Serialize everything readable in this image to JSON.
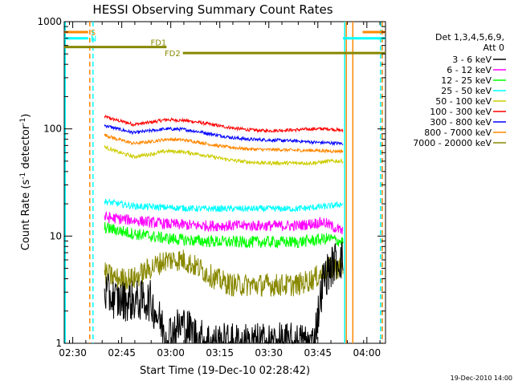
{
  "chart_data": {
    "type": "line",
    "title": "HESSI Observing Summary Count Rates",
    "xlabel": "Start Time (19-Dec-10 02:28:42)",
    "ylabel_main": "Count Rate (s",
    "ylabel_sup1": "-1",
    "ylabel_mid": " detector",
    "ylabel_sup2": "-1",
    "ylabel_end": ")",
    "y_scale": "log",
    "ylim": [
      1,
      1000
    ],
    "y_ticks": [
      {
        "value": 1,
        "label": "1"
      },
      {
        "value": 10,
        "label": "10"
      },
      {
        "value": 100,
        "label": "100"
      },
      {
        "value": 1000,
        "label": "1000"
      }
    ],
    "xlim_min": [
      -1.3,
      97
    ],
    "x_ticks": [
      {
        "value": 1.3,
        "label": "02:30"
      },
      {
        "value": 16.3,
        "label": "02:45"
      },
      {
        "value": 31.3,
        "label": "03:00"
      },
      {
        "value": 46.3,
        "label": "03:15"
      },
      {
        "value": 61.3,
        "label": "03:30"
      },
      {
        "value": 76.3,
        "label": "03:45"
      },
      {
        "value": 91.3,
        "label": "04:00"
      }
    ],
    "data_window_min": [
      11,
      84
    ],
    "legend": {
      "header": [
        "Det 1,3,4,5,6,9,",
        "Att 0"
      ],
      "placement": "right",
      "entries": [
        {
          "label": "3 - 6 keV",
          "color": "#000000"
        },
        {
          "label": "6 - 12 keV",
          "color": "#ff00ff"
        },
        {
          "label": "12 - 25 keV",
          "color": "#00ff00"
        },
        {
          "label": "25 - 50 keV",
          "color": "#00ffff"
        },
        {
          "label": "50 - 100 keV",
          "color": "#cccc00"
        },
        {
          "label": "100 - 300 keV",
          "color": "#ff0000"
        },
        {
          "label": "300 - 800 keV",
          "color": "#0000ff"
        },
        {
          "label": "800 - 7000 keV",
          "color": "#ff8800"
        },
        {
          "label": "7000 - 20000 keV",
          "color": "#888800"
        }
      ]
    },
    "series": [
      {
        "name": "100 - 300 keV",
        "color": "#ff0000",
        "points": [
          [
            11,
            130
          ],
          [
            15,
            120
          ],
          [
            20,
            110
          ],
          [
            25,
            115
          ],
          [
            30,
            122
          ],
          [
            35,
            120
          ],
          [
            40,
            115
          ],
          [
            45,
            108
          ],
          [
            50,
            102
          ],
          [
            55,
            98
          ],
          [
            60,
            96
          ],
          [
            65,
            97
          ],
          [
            70,
            98
          ],
          [
            75,
            100
          ],
          [
            80,
            100
          ],
          [
            84,
            96
          ]
        ]
      },
      {
        "name": "300 - 800 keV",
        "color": "#0000ff",
        "points": [
          [
            11,
            108
          ],
          [
            15,
            100
          ],
          [
            20,
            92
          ],
          [
            25,
            96
          ],
          [
            30,
            100
          ],
          [
            35,
            99
          ],
          [
            40,
            94
          ],
          [
            45,
            88
          ],
          [
            50,
            83
          ],
          [
            55,
            80
          ],
          [
            60,
            79
          ],
          [
            65,
            78
          ],
          [
            70,
            77
          ],
          [
            75,
            75
          ],
          [
            80,
            74
          ],
          [
            84,
            73
          ]
        ]
      },
      {
        "name": "800 - 7000 keV",
        "color": "#ff8800",
        "points": [
          [
            11,
            88
          ],
          [
            15,
            80
          ],
          [
            20,
            73
          ],
          [
            25,
            76
          ],
          [
            30,
            80
          ],
          [
            35,
            79
          ],
          [
            40,
            75
          ],
          [
            45,
            70
          ],
          [
            50,
            67
          ],
          [
            55,
            65
          ],
          [
            60,
            64
          ],
          [
            65,
            64
          ],
          [
            70,
            63
          ],
          [
            75,
            63
          ],
          [
            80,
            62
          ],
          [
            84,
            62
          ]
        ]
      },
      {
        "name": "50 - 100 keV",
        "color": "#cccc00",
        "points": [
          [
            11,
            68
          ],
          [
            15,
            61
          ],
          [
            20,
            55
          ],
          [
            25,
            58
          ],
          [
            30,
            62
          ],
          [
            35,
            61
          ],
          [
            40,
            58
          ],
          [
            45,
            54
          ],
          [
            50,
            51
          ],
          [
            55,
            49
          ],
          [
            60,
            48
          ],
          [
            65,
            48
          ],
          [
            70,
            48
          ],
          [
            75,
            48
          ],
          [
            80,
            50
          ],
          [
            84,
            50
          ]
        ]
      },
      {
        "name": "25 - 50 keV",
        "color": "#00ffff",
        "points": [
          [
            11,
            21
          ],
          [
            20,
            19
          ],
          [
            30,
            18.5
          ],
          [
            40,
            18
          ],
          [
            50,
            18
          ],
          [
            60,
            18
          ],
          [
            70,
            18
          ],
          [
            80,
            19
          ],
          [
            84,
            20
          ]
        ]
      },
      {
        "name": "6 - 12 keV",
        "color": "#ff00ff",
        "points": [
          [
            11,
            15
          ],
          [
            20,
            14
          ],
          [
            30,
            13
          ],
          [
            40,
            12.5
          ],
          [
            50,
            12.5
          ],
          [
            60,
            12.5
          ],
          [
            70,
            12.5
          ],
          [
            78,
            13.5
          ],
          [
            84,
            11
          ]
        ]
      },
      {
        "name": "12 - 25 keV",
        "color": "#00ff00",
        "points": [
          [
            11,
            12
          ],
          [
            20,
            10.5
          ],
          [
            30,
            9.5
          ],
          [
            40,
            9
          ],
          [
            50,
            8.8
          ],
          [
            60,
            8.8
          ],
          [
            70,
            8.8
          ],
          [
            80,
            9.5
          ],
          [
            84,
            8.8
          ]
        ]
      },
      {
        "name": "7000 - 20000 keV",
        "color": "#888800",
        "points": [
          [
            11,
            4.5
          ],
          [
            15,
            4
          ],
          [
            20,
            4
          ],
          [
            25,
            5
          ],
          [
            30,
            6
          ],
          [
            35,
            6
          ],
          [
            40,
            5
          ],
          [
            45,
            4
          ],
          [
            50,
            3.5
          ],
          [
            55,
            3.5
          ],
          [
            60,
            3.5
          ],
          [
            65,
            3.5
          ],
          [
            70,
            3.5
          ],
          [
            75,
            4
          ],
          [
            80,
            5
          ],
          [
            84,
            5
          ]
        ]
      },
      {
        "name": "3 - 6 keV",
        "color": "#000000",
        "points": [
          [
            11,
            3
          ],
          [
            15,
            2.5
          ],
          [
            20,
            2.5
          ],
          [
            25,
            2.5
          ],
          [
            30,
            1.2
          ],
          [
            35,
            1.5
          ],
          [
            40,
            1.1
          ],
          [
            45,
            1
          ],
          [
            50,
            1
          ],
          [
            55,
            1
          ],
          [
            60,
            1
          ],
          [
            65,
            1
          ],
          [
            70,
            1
          ],
          [
            75,
            1
          ],
          [
            78,
            4
          ],
          [
            82,
            6
          ],
          [
            84,
            6
          ]
        ]
      }
    ],
    "annotations": [
      {
        "label": "S",
        "color": "#ff8800",
        "x_min": [
          -1.3,
          6
        ],
        "value": 800,
        "type": "bar"
      },
      {
        "label": "S",
        "color": "#ff8800",
        "x_min": [
          90,
          97
        ],
        "value": 800,
        "type": "bar"
      },
      {
        "label": "N",
        "color": "#00ffff",
        "x_min": [
          -1.3,
          6
        ],
        "value": 700,
        "type": "bar"
      },
      {
        "label": "N",
        "color": "#00ffff",
        "x_min": [
          84,
          97
        ],
        "value": 700,
        "type": "bar"
      },
      {
        "label": "FD1",
        "color": "#888800",
        "x_min": [
          -1.3,
          30
        ],
        "value": 580,
        "type": "bar"
      },
      {
        "label": "FD2",
        "color": "#888800",
        "x_min": [
          35,
          97
        ],
        "value": 510,
        "type": "bar"
      }
    ],
    "vertical_lines": [
      {
        "x": -1,
        "color": "#00ffff",
        "style": "solid"
      },
      {
        "x": 6.5,
        "color": "#ff8800",
        "style": "dashed"
      },
      {
        "x": 7.5,
        "color": "#00ffff",
        "style": "dashed"
      },
      {
        "x": 84.5,
        "color": "#00ffff",
        "style": "solid"
      },
      {
        "x": 85,
        "color": "#ff8800",
        "style": "solid"
      },
      {
        "x": 87,
        "color": "#ff8800",
        "style": "solid"
      },
      {
        "x": 95.5,
        "color": "#00ffff",
        "style": "dashed"
      },
      {
        "x": 96,
        "color": "#ff8800",
        "style": "dashed"
      }
    ],
    "grid": false
  },
  "footer_date": "19-Dec-2010 14:00"
}
